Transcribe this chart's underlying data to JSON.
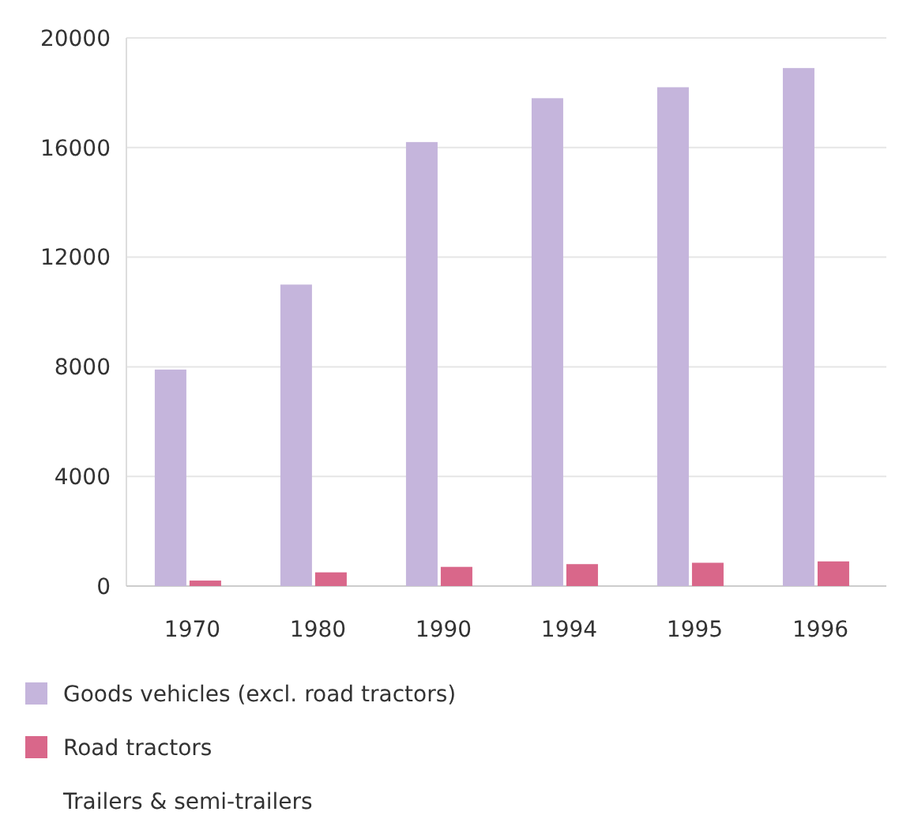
{
  "chart_data": {
    "type": "bar",
    "categories": [
      "1970",
      "1980",
      "1990",
      "1994",
      "1995",
      "1996"
    ],
    "series": [
      {
        "name": "Goods vehicles (excl. road tractors)",
        "color": "#c5b5dc",
        "values": [
          7900,
          11000,
          16200,
          17800,
          18200,
          18900
        ]
      },
      {
        "name": "Road tractors",
        "color": "#d9678a",
        "values": [
          200,
          500,
          700,
          800,
          850,
          900
        ]
      },
      {
        "name": "Trailers & semi-trailers",
        "values": [
          null,
          null,
          null,
          null,
          null,
          null
        ]
      }
    ],
    "ylim": [
      0,
      20000
    ],
    "yticks": [
      0,
      4000,
      8000,
      12000,
      16000,
      20000
    ],
    "grid": "y",
    "legend": "bottom"
  }
}
